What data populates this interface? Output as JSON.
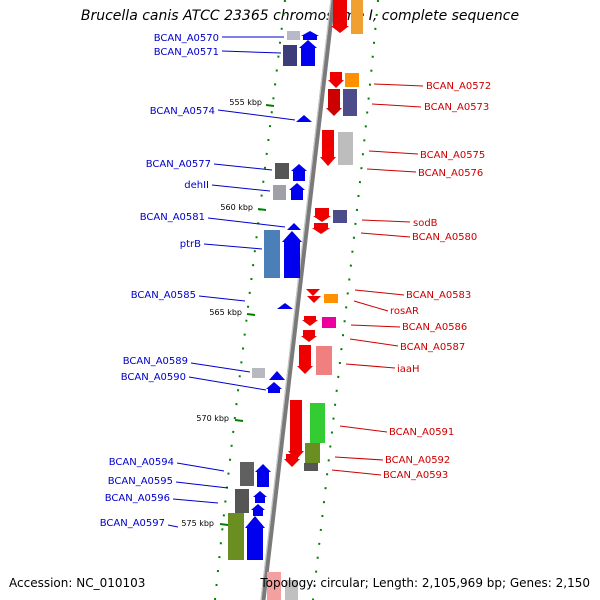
{
  "title": "Brucella canis ATCC 23365 chromosome I, complete sequence",
  "footer": {
    "accession": "Accession: NC_010103",
    "summary": "Topology: circular; Length: 2,105,969 bp; Genes: 2,150"
  },
  "colors": {
    "left_label": "#0000cc",
    "right_label": "#cc0000",
    "backbone": "#8a8a8a",
    "tick": "#008000"
  },
  "scale_ticks": [
    {
      "label": "555 kbp",
      "kbp": 555
    },
    {
      "label": "560 kbp",
      "kbp": 560
    },
    {
      "label": "565 kbp",
      "kbp": 565
    },
    {
      "label": "570 kbp",
      "kbp": 570
    },
    {
      "label": "575 kbp",
      "kbp": 575
    }
  ],
  "genes_left": [
    {
      "name": "BCAN_A0570",
      "kbp": 552.0,
      "len": 0.25
    },
    {
      "name": "BCAN_A0571",
      "kbp": 552.6,
      "len": 0.7
    },
    {
      "name": "BCAN_A0574",
      "kbp": 555.1,
      "len": 0.1
    },
    {
      "name": "BCAN_A0577",
      "kbp": 557.5,
      "len": 0.5
    },
    {
      "name": "dehII",
      "kbp": 558.3,
      "len": 0.45
    },
    {
      "name": "BCAN_A0581",
      "kbp": 560.7,
      "len": 0.2
    },
    {
      "name": "ptrB",
      "kbp": 561.1,
      "len": 2.0
    },
    {
      "name": "BCAN_A0585",
      "kbp": 564.4,
      "len": 0.15
    },
    {
      "name": "BCAN_A0589",
      "kbp": 567.8,
      "len": 0.3
    },
    {
      "name": "BCAN_A0590",
      "kbp": 568.2,
      "len": 0.35
    },
    {
      "name": "BCAN_A0594",
      "kbp": 572.3,
      "len": 0.8
    },
    {
      "name": "BCAN_A0595",
      "kbp": 573.4,
      "len": 0.35
    },
    {
      "name": "BCAN_A0596",
      "kbp": 573.8,
      "len": 0.6
    },
    {
      "name": "BCAN_A0597",
      "kbp": 574.5,
      "len": 1.7
    }
  ],
  "genes_right": [
    {
      "name": "BCAN_A0572",
      "kbp": 553.2,
      "len": 0.55
    },
    {
      "name": "BCAN_A0573",
      "kbp": 554.0,
      "len": 0.9
    },
    {
      "name": "BCAN_A0575",
      "kbp": 555.9,
      "len": 1.3
    },
    {
      "name": "BCAN_A0576",
      "kbp": 556.6,
      "len": 1.1
    },
    {
      "name": "sodB",
      "kbp": 559.9,
      "len": 0.6
    },
    {
      "name": "BCAN_A0580",
      "kbp": 560.6,
      "len": 0.35
    },
    {
      "name": "BCAN_A0583",
      "kbp": 563.3,
      "len": 0.4
    },
    {
      "name": "rosAR",
      "kbp": 563.8,
      "len": 0.4
    },
    {
      "name": "BCAN_A0586",
      "kbp": 565.1,
      "len": 0.35
    },
    {
      "name": "BCAN_A0587",
      "kbp": 565.6,
      "len": 0.9
    },
    {
      "name": "iaaH",
      "kbp": 566.7,
      "len": 1.0
    },
    {
      "name": "BCAN_A0591",
      "kbp": 569.1,
      "len": 2.1
    },
    {
      "name": "BCAN_A0592",
      "kbp": 570.3,
      "len": 1.8
    },
    {
      "name": "BCAN_A0593",
      "kbp": 571.5,
      "len": 0.8
    }
  ]
}
